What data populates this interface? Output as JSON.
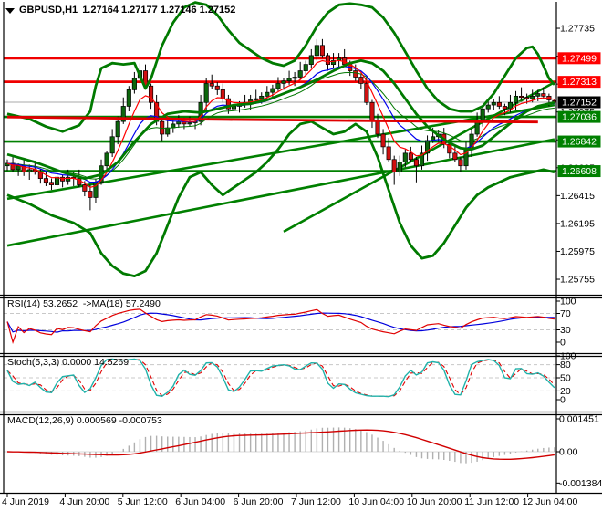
{
  "title": {
    "symbol": "GBPUSD,H1",
    "quotes": "1.27164 1.27177 1.27146 1.27152"
  },
  "panels": {
    "rsi": {
      "label": "RSI(14) 53.2652  ->MA(18) 57.2490",
      "ticks": [
        100,
        70,
        30,
        0
      ],
      "dashed": [
        70,
        30
      ]
    },
    "stoch": {
      "label": "Stoch(5,3,3) 0.0000 14.5269",
      "ticks": [
        100,
        80,
        50,
        20,
        0
      ],
      "dashed": [
        80,
        50,
        20
      ]
    },
    "macd": {
      "label": "MACD(12,26,9) 0.000569 -0.000753",
      "tick_labels": [
        "0.001451",
        "0.00",
        "-0.001384"
      ],
      "tick_values": [
        0.001451,
        0,
        -0.001384
      ]
    }
  },
  "price_axis": {
    "ticks": [
      1.27735,
      1.27515,
      1.27295,
      1.27075,
      1.26855,
      1.26635,
      1.26415,
      1.26195,
      1.25975,
      1.25755
    ],
    "resistance_levels": [
      1.27499,
      1.27313
    ],
    "support_levels": [
      1.27036,
      1.26842,
      1.26608
    ],
    "current_price": 1.27152
  },
  "time_axis": {
    "labels": [
      "4 Jun 2019",
      "4 Jun 20:00",
      "5 Jun 12:00",
      "6 Jun 04:00",
      "6 Jun 20:00",
      "7 Jun 12:00",
      "10 Jun 04:00",
      "10 Jun 20:00",
      "11 Jun 12:00",
      "12 Jun 04:00"
    ]
  },
  "colors": {
    "bull": "#0d660d",
    "bear": "#d01010",
    "band_green": "#007a00",
    "trend_green": "#008000",
    "level_red": "#f00000",
    "ma_red": "#e00000",
    "ma_fast_red": "#ff0000",
    "ma_mid_blue": "#0000ee",
    "ma_slow_green": "#007700",
    "current_line": "#aaaaaa",
    "badge_black": "#000000",
    "badge_red": "#ff0000",
    "badge_green": "#008000",
    "rsi_line": "#e00000",
    "rsi_ma": "#0000dd",
    "stoch_main": "#20b2aa",
    "stoch_signal": "#e00000",
    "macd_hist": "#b0b0b0",
    "macd_signal": "#d00000",
    "dashed_level": "#c8c8c8",
    "frame": "#000000"
  },
  "chart_data": {
    "type": "candlestick",
    "symbol": "GBPUSD",
    "timeframe": "H1",
    "title": "GBPUSD,H1 1.27164 1.27177 1.27146 1.27152",
    "ylim": [
      1.2564,
      1.2793
    ],
    "candles": [
      [
        1.2665,
        1.267,
        1.2661,
        1.2667
      ],
      [
        1.2667,
        1.2672,
        1.266,
        1.2662
      ],
      [
        1.2662,
        1.2667,
        1.2657,
        1.2665
      ],
      [
        1.2665,
        1.2671,
        1.2657,
        1.266
      ],
      [
        1.266,
        1.2666,
        1.2654,
        1.2662
      ],
      [
        1.2662,
        1.2669,
        1.2658,
        1.266
      ],
      [
        1.266,
        1.2663,
        1.2651,
        1.2655
      ],
      [
        1.2655,
        1.266,
        1.2649,
        1.2652
      ],
      [
        1.2652,
        1.2655,
        1.2646,
        1.265
      ],
      [
        1.265,
        1.2661,
        1.2648,
        1.2656
      ],
      [
        1.2656,
        1.2658,
        1.2648,
        1.2653
      ],
      [
        1.2653,
        1.2662,
        1.265,
        1.2656
      ],
      [
        1.2656,
        1.266,
        1.2649,
        1.2655
      ],
      [
        1.2655,
        1.2662,
        1.2648,
        1.265
      ],
      [
        1.265,
        1.2653,
        1.2641,
        1.2645
      ],
      [
        1.2645,
        1.265,
        1.263,
        1.264
      ],
      [
        1.264,
        1.2655,
        1.2636,
        1.2652
      ],
      [
        1.2652,
        1.267,
        1.265,
        1.2665
      ],
      [
        1.2665,
        1.2677,
        1.266,
        1.2675
      ],
      [
        1.2675,
        1.2694,
        1.2672,
        1.2688
      ],
      [
        1.2688,
        1.2704,
        1.2682,
        1.27
      ],
      [
        1.27,
        1.2719,
        1.2698,
        1.2712
      ],
      [
        1.2712,
        1.2728,
        1.2708,
        1.2725
      ],
      [
        1.2725,
        1.2739,
        1.2722,
        1.2734
      ],
      [
        1.2734,
        1.2746,
        1.273,
        1.274
      ],
      [
        1.274,
        1.2745,
        1.2726,
        1.2728
      ],
      [
        1.2728,
        1.273,
        1.271,
        1.2715
      ],
      [
        1.2715,
        1.2721,
        1.2697,
        1.27
      ],
      [
        1.27,
        1.2704,
        1.2684,
        1.269
      ],
      [
        1.269,
        1.2702,
        1.2688,
        1.2695
      ],
      [
        1.2695,
        1.2701,
        1.2691,
        1.2698
      ],
      [
        1.2698,
        1.2705,
        1.2695,
        1.27
      ],
      [
        1.27,
        1.2703,
        1.2694,
        1.2698
      ],
      [
        1.2698,
        1.2704,
        1.2696,
        1.2699
      ],
      [
        1.2699,
        1.2702,
        1.2694,
        1.27
      ],
      [
        1.27,
        1.2721,
        1.2697,
        1.2715
      ],
      [
        1.2715,
        1.2734,
        1.2709,
        1.273
      ],
      [
        1.273,
        1.2737,
        1.2726,
        1.2728
      ],
      [
        1.2728,
        1.2731,
        1.2721,
        1.2725
      ],
      [
        1.2725,
        1.273,
        1.2715,
        1.2718
      ],
      [
        1.2718,
        1.2721,
        1.2706,
        1.271
      ],
      [
        1.271,
        1.2717,
        1.2708,
        1.2712
      ],
      [
        1.2712,
        1.2716,
        1.2707,
        1.2714
      ],
      [
        1.2714,
        1.2721,
        1.2711,
        1.2715
      ],
      [
        1.2715,
        1.2721,
        1.2709,
        1.2717
      ],
      [
        1.2717,
        1.2725,
        1.2715,
        1.2718
      ],
      [
        1.2718,
        1.2723,
        1.2714,
        1.272
      ],
      [
        1.272,
        1.2728,
        1.2717,
        1.2723
      ],
      [
        1.2723,
        1.2729,
        1.2719,
        1.2726
      ],
      [
        1.2726,
        1.2735,
        1.2724,
        1.273
      ],
      [
        1.273,
        1.2734,
        1.2725,
        1.2732
      ],
      [
        1.2732,
        1.274,
        1.2729,
        1.2734
      ],
      [
        1.2734,
        1.2739,
        1.2728,
        1.2735
      ],
      [
        1.2735,
        1.2747,
        1.2733,
        1.274
      ],
      [
        1.274,
        1.2748,
        1.2736,
        1.2745
      ],
      [
        1.2745,
        1.2757,
        1.2742,
        1.2752
      ],
      [
        1.2752,
        1.2765,
        1.2748,
        1.276
      ],
      [
        1.276,
        1.2765,
        1.275,
        1.2752
      ],
      [
        1.2752,
        1.2754,
        1.274,
        1.2745
      ],
      [
        1.2745,
        1.2754,
        1.2742,
        1.2748
      ],
      [
        1.2748,
        1.2754,
        1.2742,
        1.275
      ],
      [
        1.275,
        1.2757,
        1.2743,
        1.2745
      ],
      [
        1.2745,
        1.2748,
        1.2736,
        1.274
      ],
      [
        1.274,
        1.2745,
        1.2732,
        1.2735
      ],
      [
        1.2735,
        1.2738,
        1.2726,
        1.273
      ],
      [
        1.273,
        1.2735,
        1.2713,
        1.2715
      ],
      [
        1.2715,
        1.2717,
        1.2695,
        1.27
      ],
      [
        1.27,
        1.2706,
        1.2687,
        1.269
      ],
      [
        1.269,
        1.2694,
        1.2674,
        1.268
      ],
      [
        1.268,
        1.2687,
        1.2668,
        1.267
      ],
      [
        1.267,
        1.2673,
        1.265,
        1.266
      ],
      [
        1.266,
        1.2673,
        1.2657,
        1.2668
      ],
      [
        1.2668,
        1.2678,
        1.2664,
        1.2675
      ],
      [
        1.2675,
        1.268,
        1.2668,
        1.267
      ],
      [
        1.267,
        1.2672,
        1.2652,
        1.2665
      ],
      [
        1.2665,
        1.2681,
        1.2662,
        1.2675
      ],
      [
        1.2675,
        1.2689,
        1.2669,
        1.2685
      ],
      [
        1.2685,
        1.2695,
        1.2683,
        1.2688
      ],
      [
        1.2688,
        1.2693,
        1.2684,
        1.269
      ],
      [
        1.269,
        1.2695,
        1.2679,
        1.2682
      ],
      [
        1.2682,
        1.2685,
        1.2671,
        1.2675
      ],
      [
        1.2675,
        1.268,
        1.2668,
        1.267
      ],
      [
        1.267,
        1.2672,
        1.266,
        1.2665
      ],
      [
        1.2665,
        1.2684,
        1.2662,
        1.2678
      ],
      [
        1.2678,
        1.2694,
        1.2672,
        1.269
      ],
      [
        1.269,
        1.2707,
        1.2688,
        1.27
      ],
      [
        1.27,
        1.2713,
        1.2696,
        1.271
      ],
      [
        1.271,
        1.2718,
        1.2707,
        1.2713
      ],
      [
        1.2713,
        1.2718,
        1.2709,
        1.2715
      ],
      [
        1.2715,
        1.272,
        1.271,
        1.2712
      ],
      [
        1.2712,
        1.2714,
        1.2705,
        1.271
      ],
      [
        1.271,
        1.2721,
        1.2707,
        1.2715
      ],
      [
        1.2715,
        1.2724,
        1.2709,
        1.272
      ],
      [
        1.272,
        1.2727,
        1.2717,
        1.2719
      ],
      [
        1.2719,
        1.2722,
        1.2714,
        1.2718
      ],
      [
        1.2718,
        1.2725,
        1.2715,
        1.272
      ],
      [
        1.272,
        1.2725,
        1.2716,
        1.2722
      ],
      [
        1.2722,
        1.2727,
        1.2718,
        1.272
      ],
      [
        1.272,
        1.2722,
        1.2712,
        1.2717
      ],
      [
        1.27164,
        1.27177,
        1.27146,
        1.27152
      ]
    ],
    "overlays": {
      "upper_band": [
        [
          0,
          1.2706
        ],
        [
          4,
          1.2702
        ],
        [
          7,
          1.2696
        ],
        [
          10,
          1.2692
        ],
        [
          13,
          1.2697
        ],
        [
          15,
          1.2708
        ],
        [
          16,
          1.2728
        ],
        [
          17,
          1.2742
        ],
        [
          19,
          1.2746
        ],
        [
          21,
          1.2745
        ],
        [
          23,
          1.2746
        ],
        [
          24,
          1.2736
        ],
        [
          25,
          1.2726
        ],
        [
          26,
          1.2734
        ],
        [
          28,
          1.276
        ],
        [
          30,
          1.2778
        ],
        [
          32,
          1.279
        ],
        [
          34,
          1.2794
        ],
        [
          36,
          1.2792
        ],
        [
          38,
          1.2784
        ],
        [
          40,
          1.2772
        ],
        [
          42,
          1.2762
        ],
        [
          44,
          1.2756
        ],
        [
          46,
          1.275
        ],
        [
          48,
          1.2746
        ],
        [
          50,
          1.2744
        ],
        [
          52,
          1.2748
        ],
        [
          54,
          1.276
        ],
        [
          56,
          1.2775
        ],
        [
          58,
          1.2786
        ],
        [
          60,
          1.2792
        ],
        [
          62,
          1.2793
        ],
        [
          64,
          1.2792
        ],
        [
          66,
          1.279
        ],
        [
          68,
          1.2782
        ],
        [
          70,
          1.277
        ],
        [
          72,
          1.2755
        ],
        [
          74,
          1.274
        ],
        [
          76,
          1.2726
        ],
        [
          78,
          1.2716
        ],
        [
          80,
          1.271
        ],
        [
          82,
          1.2708
        ],
        [
          84,
          1.2708
        ],
        [
          86,
          1.2712
        ],
        [
          88,
          1.2722
        ],
        [
          90,
          1.2736
        ],
        [
          92,
          1.275
        ],
        [
          94,
          1.2758
        ],
        [
          95,
          1.2759
        ],
        [
          96,
          1.2753
        ],
        [
          97,
          1.2744
        ],
        [
          98,
          1.2734
        ],
        [
          99,
          1.2729
        ]
      ],
      "middle_band": [
        [
          0,
          1.2674
        ],
        [
          5,
          1.2668
        ],
        [
          10,
          1.266
        ],
        [
          14,
          1.2655
        ],
        [
          17,
          1.2658
        ],
        [
          20,
          1.2668
        ],
        [
          23,
          1.2684
        ],
        [
          26,
          1.2698
        ],
        [
          29,
          1.2706
        ],
        [
          32,
          1.2708
        ],
        [
          35,
          1.2707
        ],
        [
          38,
          1.271
        ],
        [
          41,
          1.2713
        ],
        [
          44,
          1.2714
        ],
        [
          47,
          1.2717
        ],
        [
          50,
          1.2722
        ],
        [
          53,
          1.2727
        ],
        [
          56,
          1.2733
        ],
        [
          59,
          1.274
        ],
        [
          62,
          1.2746
        ],
        [
          64,
          1.2748
        ],
        [
          66,
          1.2746
        ],
        [
          68,
          1.274
        ],
        [
          70,
          1.273
        ],
        [
          72,
          1.2718
        ],
        [
          74,
          1.2706
        ],
        [
          76,
          1.2696
        ],
        [
          78,
          1.2689
        ],
        [
          80,
          1.2683
        ],
        [
          82,
          1.2679
        ],
        [
          84,
          1.2678
        ],
        [
          86,
          1.2681
        ],
        [
          88,
          1.2688
        ],
        [
          90,
          1.2695
        ],
        [
          92,
          1.2702
        ],
        [
          94,
          1.2708
        ],
        [
          96,
          1.2712
        ],
        [
          99,
          1.2715
        ]
      ],
      "lower_band": [
        [
          0,
          1.2642
        ],
        [
          4,
          1.2635
        ],
        [
          8,
          1.2626
        ],
        [
          12,
          1.262
        ],
        [
          15,
          1.2612
        ],
        [
          17,
          1.2596
        ],
        [
          19,
          1.2586
        ],
        [
          21,
          1.258
        ],
        [
          23,
          1.2578
        ],
        [
          25,
          1.2582
        ],
        [
          27,
          1.2596
        ],
        [
          29,
          1.2618
        ],
        [
          31,
          1.264
        ],
        [
          33,
          1.2656
        ],
        [
          35,
          1.266
        ],
        [
          37,
          1.265
        ],
        [
          39,
          1.2642
        ],
        [
          41,
          1.2648
        ],
        [
          43,
          1.2654
        ],
        [
          45,
          1.266
        ],
        [
          47,
          1.2668
        ],
        [
          49,
          1.2678
        ],
        [
          51,
          1.269
        ],
        [
          53,
          1.2698
        ],
        [
          55,
          1.27
        ],
        [
          57,
          1.2695
        ],
        [
          59,
          1.269
        ],
        [
          61,
          1.2692
        ],
        [
          63,
          1.2698
        ],
        [
          65,
          1.2692
        ],
        [
          67,
          1.2672
        ],
        [
          69,
          1.2646
        ],
        [
          71,
          1.262
        ],
        [
          73,
          1.2602
        ],
        [
          75,
          1.2592
        ],
        [
          77,
          1.2594
        ],
        [
          79,
          1.2604
        ],
        [
          81,
          1.2618
        ],
        [
          83,
          1.2632
        ],
        [
          85,
          1.2642
        ],
        [
          87,
          1.2648
        ],
        [
          89,
          1.2652
        ],
        [
          91,
          1.2656
        ],
        [
          93,
          1.2658
        ],
        [
          95,
          1.266
        ],
        [
          97,
          1.2662
        ],
        [
          99,
          1.266
        ]
      ],
      "ma_flat_red": [
        [
          0,
          1.27035
        ],
        [
          20,
          1.27025
        ],
        [
          40,
          1.27015
        ],
        [
          60,
          1.27008
        ],
        [
          80,
          1.27
        ],
        [
          96,
          1.26996
        ]
      ],
      "trend_lines": [
        [
          [
            0,
            1.2602
          ],
          [
            99,
            1.2686
          ]
        ],
        [
          [
            0,
            1.2639
          ],
          [
            99,
            1.2713
          ]
        ],
        [
          [
            50,
            1.2613
          ],
          [
            99,
            1.2731
          ]
        ]
      ]
    }
  }
}
